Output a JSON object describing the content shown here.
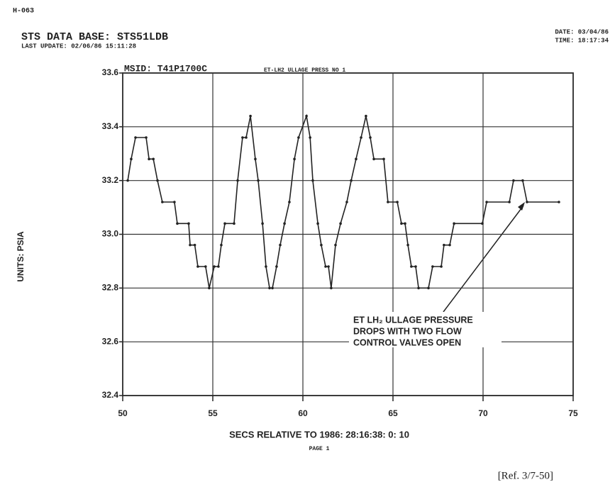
{
  "header": {
    "doc_id": "H-063",
    "database": "STS DATA BASE: STS51LDB",
    "last_update": "LAST UPDATE: 02/06/86  15:11:28",
    "date": "DATE: 03/04/86",
    "time": "TIME: 18:17:34"
  },
  "chart_data": {
    "type": "line",
    "title": "MSID: T41P1700C",
    "subtitle": "ET-LH2 ULLAGE PRESS NO 1",
    "x_label": "SECS RELATIVE TO 1986: 28:16:38: 0: 10",
    "y_label": "UNITS: PSIA",
    "color": "#222222",
    "grid": true,
    "x": [
      50.28,
      50.47,
      50.71,
      51.3,
      51.46,
      51.7,
      51.93,
      52.2,
      52.87,
      53.03,
      53.66,
      53.74,
      54.0,
      54.17,
      54.6,
      54.8,
      55.08,
      55.31,
      55.47,
      55.67,
      56.18,
      56.38,
      56.65,
      56.85,
      57.09,
      57.36,
      57.52,
      57.76,
      57.95,
      58.15,
      58.31,
      58.54,
      58.74,
      58.98,
      59.25,
      59.53,
      59.76,
      60.2,
      60.4,
      60.55,
      60.83,
      61.02,
      61.26,
      61.42,
      61.57,
      61.81,
      62.09,
      62.44,
      62.68,
      62.95,
      63.23,
      63.5,
      63.74,
      63.94,
      64.49,
      64.72,
      65.24,
      65.47,
      65.67,
      65.83,
      66.02,
      66.26,
      66.42,
      66.97,
      67.2,
      67.68,
      67.83,
      68.15,
      68.39,
      69.96,
      70.2,
      71.46,
      71.69,
      72.2,
      72.44,
      74.21
    ],
    "values": [
      33.2,
      33.28,
      33.36,
      33.36,
      33.28,
      33.28,
      33.2,
      33.12,
      33.12,
      33.04,
      33.04,
      32.96,
      32.96,
      32.88,
      32.88,
      32.8,
      32.88,
      32.88,
      32.96,
      33.04,
      33.04,
      33.2,
      33.36,
      33.36,
      33.44,
      33.28,
      33.2,
      33.04,
      32.88,
      32.8,
      32.8,
      32.88,
      32.96,
      33.04,
      33.12,
      33.28,
      33.36,
      33.44,
      33.36,
      33.2,
      33.04,
      32.96,
      32.88,
      32.88,
      32.8,
      32.96,
      33.04,
      33.12,
      33.2,
      33.28,
      33.36,
      33.44,
      33.36,
      33.28,
      33.28,
      33.12,
      33.12,
      33.04,
      33.04,
      32.96,
      32.88,
      32.88,
      32.8,
      32.8,
      32.88,
      32.88,
      32.96,
      32.96,
      33.04,
      33.04,
      33.12,
      33.12,
      33.2,
      33.2,
      33.12,
      33.12
    ],
    "xlim": [
      50,
      75
    ],
    "xticks": [
      50,
      55,
      60,
      65,
      70,
      75
    ],
    "ylim": [
      32.4,
      33.6
    ],
    "yticks": [
      32.4,
      32.6,
      32.8,
      {
        "value": 33,
        "label": "33.0"
      },
      33.2,
      33.4,
      33.6
    ],
    "annotation": [
      "ET LH₂ ULLAGE PRESSURE",
      "DROPS WITH TWO FLOW",
      "CONTROL VALVES OPEN"
    ],
    "page": "PAGE   1"
  },
  "reference": "[Ref. 3/7-50]"
}
